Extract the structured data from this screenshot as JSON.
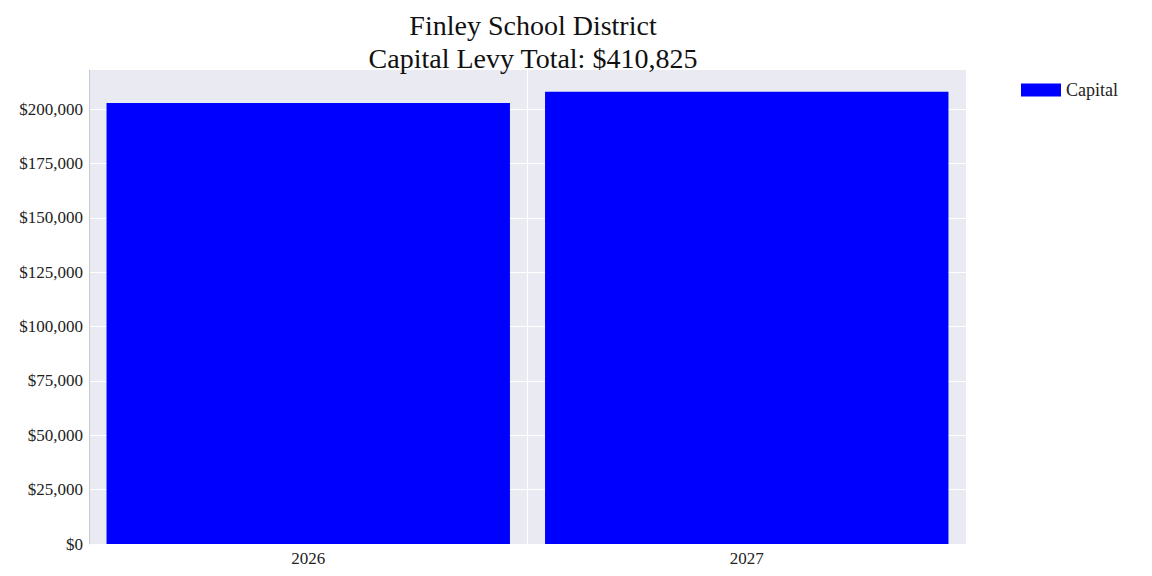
{
  "chart_data": {
    "type": "bar",
    "title": "Finley School District\nCapital Levy Total: $410,825",
    "categories": [
      "2026",
      "2027"
    ],
    "series": [
      {
        "name": "Capital",
        "color": "#0000ff",
        "values": [
          202800,
          208025
        ]
      }
    ],
    "ylim": [
      0,
      218000
    ],
    "yticks": [
      {
        "value": 0,
        "label": "$0"
      },
      {
        "value": 25000,
        "label": "$25,000"
      },
      {
        "value": 50000,
        "label": "$50,000"
      },
      {
        "value": 75000,
        "label": "$75,000"
      },
      {
        "value": 100000,
        "label": "$100,000"
      },
      {
        "value": 125000,
        "label": "$125,000"
      },
      {
        "value": 150000,
        "label": "$150,000"
      },
      {
        "value": 175000,
        "label": "$175,000"
      },
      {
        "value": 200000,
        "label": "$200,000"
      }
    ],
    "grid": true,
    "legend": "upper right"
  }
}
